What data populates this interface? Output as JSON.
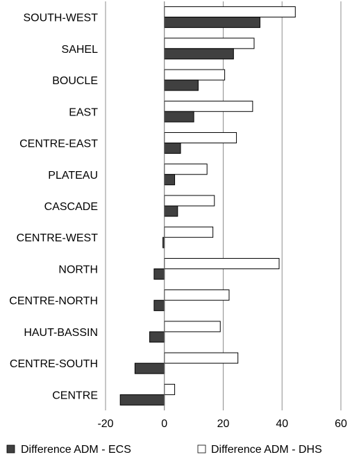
{
  "chart_data": {
    "type": "bar",
    "orientation": "horizontal",
    "categories": [
      "SOUTH-WEST",
      "SAHEL",
      "BOUCLE",
      "EAST",
      "CENTRE-EAST",
      "PLATEAU",
      "CASCADE",
      "CENTRE-WEST",
      "NORTH",
      "CENTRE-NORTH",
      "HAUT-BASSIN",
      "CENTRE-SOUTH",
      "CENTRE"
    ],
    "series": [
      {
        "name": "Difference ADM - DHS",
        "color": "#ffffff",
        "values": [
          44.5,
          30.5,
          20.5,
          30,
          24.5,
          14.5,
          17,
          16.5,
          39,
          22,
          19,
          25,
          3.5
        ]
      },
      {
        "name": "Difference ADM - ECS",
        "color": "#404040",
        "values": [
          32.5,
          23.5,
          11.5,
          10,
          5.5,
          3.5,
          4.5,
          -0.5,
          -3.5,
          -3.5,
          -5,
          -10,
          -15
        ]
      }
    ],
    "xlim": [
      -20,
      60
    ],
    "xticks": [
      "-20",
      "0",
      "20",
      "40",
      "60"
    ],
    "grid": "vertical",
    "legend_position": "bottom",
    "legend": [
      {
        "label": "Difference ADM - ECS",
        "color": "#404040"
      },
      {
        "label": "Difference ADM - DHS",
        "color": "#ffffff"
      }
    ]
  }
}
